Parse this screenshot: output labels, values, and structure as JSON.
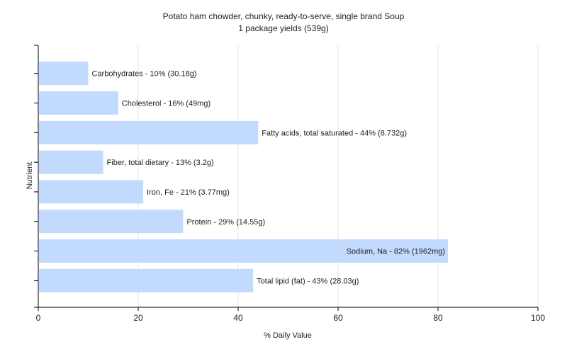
{
  "chart_data": {
    "type": "bar",
    "orientation": "horizontal",
    "title": "Potato ham chowder, chunky, ready-to-serve, single brand Soup",
    "subtitle": "1 package yields (539g)",
    "xlabel": "% Daily Value",
    "ylabel": "Nutrient",
    "xlim": [
      0,
      100
    ],
    "xticks": [
      0,
      20,
      40,
      60,
      80,
      100
    ],
    "grid": true,
    "bar_color": "#c2dafe",
    "categories": [
      "Carbohydrates",
      "Cholesterol",
      "Fatty acids, total saturated",
      "Fiber, total dietary",
      "Iron, Fe",
      "Protein",
      "Sodium, Na",
      "Total lipid (fat)"
    ],
    "values": [
      10,
      16,
      44,
      13,
      21,
      29,
      82,
      43
    ],
    "labels": [
      "Carbohydrates - 10% (30.18g)",
      "Cholesterol - 16% (49mg)",
      "Fatty acids, total saturated - 44% (8.732g)",
      "Fiber, total dietary - 13% (3.2g)",
      "Iron, Fe - 21% (3.77mg)",
      "Protein - 29% (14.55g)",
      "Sodium, Na - 82% (1962mg)",
      "Total lipid (fat) - 43% (28.03g)"
    ]
  }
}
